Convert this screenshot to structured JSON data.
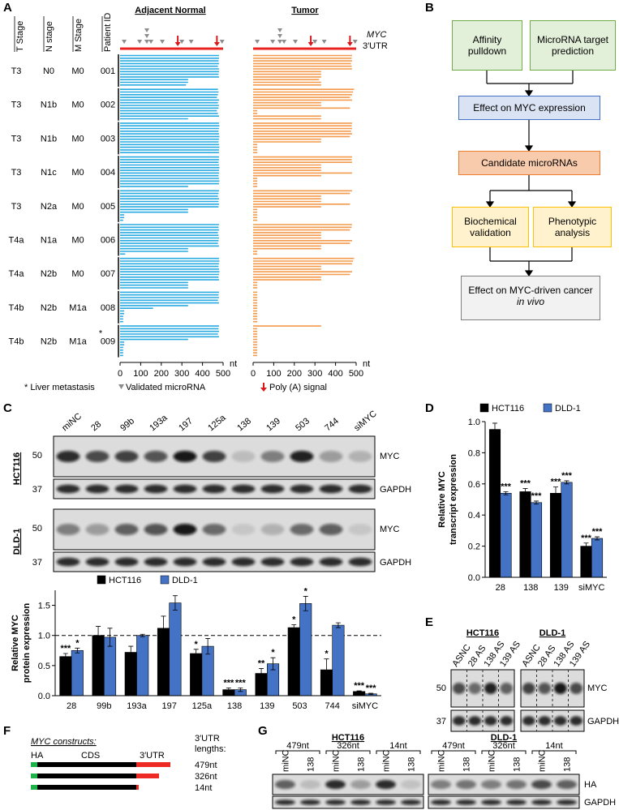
{
  "panel_labels": [
    "A",
    "B",
    "C",
    "D",
    "E",
    "F",
    "G"
  ],
  "panel_a": {
    "headers": [
      "T Stage",
      "N stage",
      "M Stage",
      "Patient ID"
    ],
    "patients": [
      {
        "t": "T3",
        "n": "N0",
        "m": "M0",
        "id": "001"
      },
      {
        "t": "T3",
        "n": "N1b",
        "m": "M0",
        "id": "002"
      },
      {
        "t": "T3",
        "n": "N1b",
        "m": "M0",
        "id": "003"
      },
      {
        "t": "T3",
        "n": "N1c",
        "m": "M0",
        "id": "004"
      },
      {
        "t": "T3",
        "n": "N2a",
        "m": "M0",
        "id": "005"
      },
      {
        "t": "T4a",
        "n": "N1a",
        "m": "M0",
        "id": "006"
      },
      {
        "t": "T4a",
        "n": "N2b",
        "m": "M0",
        "id": "007"
      },
      {
        "t": "T4b",
        "n": "N2b",
        "m": "M1a",
        "id": "008"
      },
      {
        "t": "T4b",
        "n": "N2b",
        "m": "M1a",
        "id": "009",
        "note": "*"
      }
    ],
    "normal_title": "Adjacent Normal",
    "tumor_title": "Tumor",
    "gene": "MYC",
    "region": "3′UTR",
    "xlim": [
      0,
      500
    ],
    "xticks": [
      0,
      100,
      200,
      300,
      400,
      500
    ],
    "xunit": "nt",
    "mirna_sites": [
      20,
      95,
      130,
      130,
      130,
      150,
      205,
      300,
      345,
      495
    ],
    "polya_sites": [
      280,
      470
    ],
    "normal_color": "#29abe2",
    "tumor_color": "#f39a4c",
    "normal_reads": [
      [
        480,
        480,
        478,
        480,
        475,
        480,
        480,
        478,
        480,
        330,
        330,
        320
      ],
      [
        475,
        478,
        475,
        470,
        480,
        475,
        480,
        478,
        470,
        475,
        480,
        330
      ],
      [
        480,
        482,
        480,
        478,
        480,
        482,
        480,
        478,
        480,
        482,
        480,
        480
      ],
      [
        480,
        480,
        478,
        480,
        482,
        480,
        480,
        478,
        480,
        482,
        480,
        330
      ],
      [
        480,
        478,
        475,
        480,
        478,
        480,
        478,
        330,
        330,
        20,
        20,
        15
      ],
      [
        480,
        478,
        480,
        475,
        478,
        480,
        478,
        475,
        480,
        330,
        330,
        25
      ],
      [
        480,
        482,
        480,
        478,
        480,
        482,
        480,
        478,
        480,
        330,
        330,
        330
      ],
      [
        480,
        478,
        480,
        475,
        480,
        330,
        160,
        20,
        20,
        15,
        15,
        15
      ],
      [
        480,
        478,
        480,
        475,
        480,
        330,
        20,
        20,
        15,
        15,
        15,
        15
      ]
    ],
    "tumor_reads": [
      [
        480,
        478,
        480,
        475,
        478,
        480,
        330,
        330,
        330,
        320,
        330,
        330
      ],
      [
        490,
        485,
        480,
        470,
        480,
        330,
        330,
        470,
        20,
        20,
        330,
        330
      ],
      [
        480,
        478,
        480,
        475,
        480,
        470,
        330,
        330,
        20,
        20,
        20,
        20
      ],
      [
        480,
        478,
        480,
        330,
        330,
        330,
        480,
        330,
        20,
        20,
        20,
        20
      ],
      [
        480,
        470,
        330,
        330,
        330,
        470,
        330,
        20,
        20,
        20,
        20,
        20
      ],
      [
        480,
        478,
        470,
        330,
        330,
        330,
        480,
        470,
        330,
        330,
        20,
        20
      ],
      [
        490,
        485,
        480,
        330,
        330,
        480,
        470,
        330,
        330,
        20,
        20,
        20
      ],
      [
        20,
        20,
        20,
        20,
        20,
        20,
        20,
        20,
        20,
        20,
        20,
        20
      ],
      [
        330,
        20,
        20,
        20,
        20,
        20,
        20,
        20,
        20,
        20,
        20,
        20
      ]
    ],
    "legend": {
      "liver": "* Liver metastasis",
      "mirna": "Validated microRNA",
      "polya": "Poly (A) signal"
    }
  },
  "panel_b": {
    "boxes": [
      "Affinity pulldown",
      "MicroRNA target prediction",
      "Effect on MYC expression",
      "Candidate microRNAs",
      "Biochemical validation",
      "Phenotypic analysis"
    ],
    "final": {
      "text": "Effect on MYC-driven cancer",
      "italic": "in vivo"
    }
  },
  "panel_c": {
    "lanes": [
      "miNC",
      "28",
      "99b",
      "193a",
      "197",
      "125a",
      "138",
      "139",
      "503",
      "744",
      "siMYC"
    ],
    "cell_lines": [
      "HCT116",
      "DLD-1"
    ],
    "mw": [
      50,
      37
    ],
    "bands": [
      "MYC",
      "GAPDH"
    ]
  },
  "chart_data": [
    {
      "type": "bar",
      "ylabel": [
        "Relative MYC",
        "protein expression"
      ],
      "categories": [
        "28",
        "99b",
        "193a",
        "197",
        "125a",
        "138",
        "139",
        "503",
        "744",
        "siMYC"
      ],
      "series": [
        {
          "name": "HCT116",
          "color": "#000000",
          "values": [
            0.65,
            1.0,
            0.72,
            1.12,
            0.7,
            0.1,
            0.37,
            1.13,
            0.43,
            0.07
          ],
          "errors": [
            0.05,
            0.15,
            0.1,
            0.2,
            0.07,
            0.03,
            0.08,
            0.05,
            0.18,
            0.01
          ],
          "significance": [
            "***",
            null,
            null,
            null,
            "*",
            "***",
            "**",
            "*",
            "*",
            "***"
          ]
        },
        {
          "name": "DLD-1",
          "color": "#4472c4",
          "values": [
            0.75,
            0.97,
            1.0,
            1.54,
            0.82,
            0.1,
            0.53,
            1.53,
            1.17,
            0.03
          ],
          "errors": [
            0.04,
            0.15,
            0.02,
            0.12,
            0.13,
            0.03,
            0.1,
            0.12,
            0.04,
            0.01
          ],
          "significance": [
            "*",
            null,
            null,
            null,
            null,
            "***",
            "*",
            "*",
            null,
            "***"
          ]
        }
      ],
      "ylim": [
        0,
        1.75
      ],
      "yticks": [
        {
          "value": 0,
          "label": "0.0"
        },
        {
          "value": 0.5,
          "label": "0.5"
        },
        {
          "value": 1,
          "label": "1.0"
        },
        {
          "value": 1.5,
          "label": "1.5"
        }
      ],
      "reference_line": 1
    },
    {
      "type": "bar",
      "ylabel": [
        "Relative MYC",
        "transcript expression"
      ],
      "categories": [
        "28",
        "138",
        "139",
        "siMYC"
      ],
      "series": [
        {
          "name": "HCT116",
          "color": "#000000",
          "values": [
            0.95,
            0.55,
            0.54,
            0.2
          ],
          "errors": [
            0.04,
            0.02,
            0.04,
            0.02
          ],
          "significance": [
            null,
            "***",
            "***",
            "***"
          ]
        },
        {
          "name": "DLD-1",
          "color": "#4472c4",
          "values": [
            0.54,
            0.48,
            0.61,
            0.25
          ],
          "errors": [
            0.01,
            0.01,
            0.01,
            0.01
          ],
          "significance": [
            "***",
            "***",
            "***",
            "***"
          ]
        }
      ],
      "ylim": [
        0,
        1
      ],
      "yticks": [
        {
          "value": 0,
          "label": "0.0"
        },
        {
          "value": 0.2,
          "label": "0.2"
        },
        {
          "value": 0.4,
          "label": "0.4"
        },
        {
          "value": 0.6,
          "label": "0.6"
        },
        {
          "value": 0.8,
          "label": "0.8"
        },
        {
          "value": 1,
          "label": "1.0"
        }
      ]
    }
  ],
  "panel_e": {
    "cell_lines": [
      "HCT116",
      "DLD-1"
    ],
    "lanes": [
      "ASNC",
      "28 AS",
      "138 AS",
      "139 AS"
    ],
    "mw": [
      50,
      37
    ],
    "bands": [
      "MYC",
      "GAPDH"
    ]
  },
  "panel_f": {
    "title": "MYC constructs:",
    "parts": [
      "HA",
      "CDS",
      "3′UTR"
    ],
    "lengths_title": [
      "3′UTR",
      "lengths:"
    ],
    "lengths": [
      "479nt",
      "326nt",
      "14nt"
    ]
  },
  "panel_g": {
    "cell_lines": [
      "HCT116",
      "DLD-1"
    ],
    "groups": [
      "479nt",
      "326nt",
      "14nt"
    ],
    "lanes": [
      "miNC",
      "138"
    ],
    "bands": [
      "HA",
      "GAPDH"
    ]
  }
}
